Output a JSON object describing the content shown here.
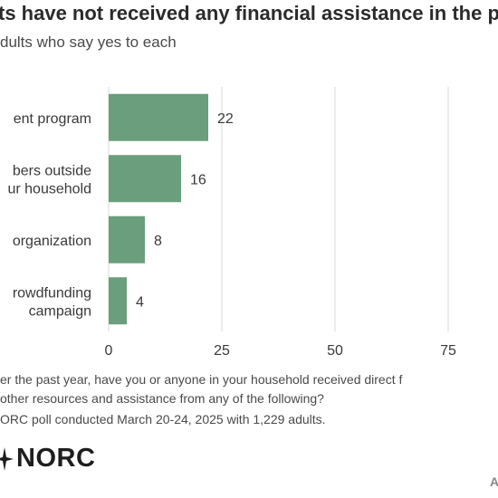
{
  "header": {
    "title": "ts have not received any financial assistance in the p",
    "subtitle": "dults who say yes to each"
  },
  "chart_data": {
    "type": "bar",
    "orientation": "horizontal",
    "categories": [
      [
        "ent program"
      ],
      [
        "bers outside",
        "ur household"
      ],
      [
        "organization"
      ],
      [
        "rowdfunding",
        "campaign"
      ]
    ],
    "values": [
      22,
      16,
      8,
      4
    ],
    "xlim": [
      0,
      86
    ],
    "xticks": [
      0,
      25,
      50,
      75
    ],
    "grid": true,
    "bar_color": "#6a9e7c",
    "grid_color": "#d9d9d9"
  },
  "notes": [
    "er the past year, have you or anyone in your household received direct f",
    "other resources and assistance from any of the following?",
    "ORC poll conducted March 20-24, 2025 with 1,229 adults."
  ],
  "logo": {
    "text": "NORC",
    "icon": "norc-star-icon"
  },
  "corner_mark": "A"
}
